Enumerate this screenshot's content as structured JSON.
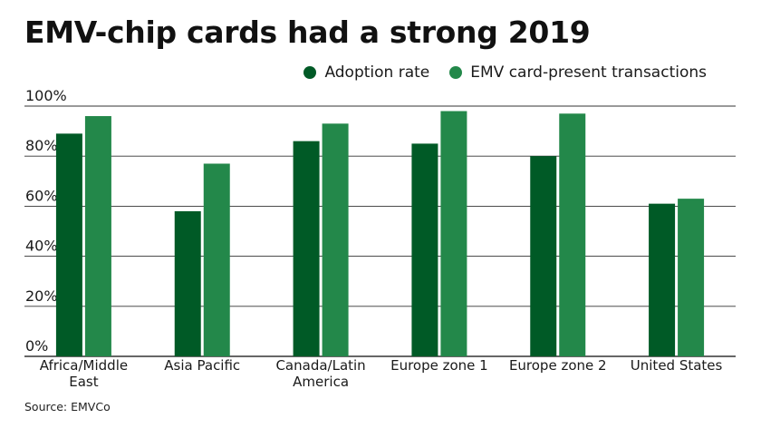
{
  "title": "EMV-chip cards had a strong 2019",
  "source": "Source: EMVCo",
  "colors": {
    "adoption": "#005a26",
    "transactions": "#23884a",
    "grid": "#333333"
  },
  "chart_data": {
    "type": "bar",
    "title": "EMV-chip cards had a strong 2019",
    "xlabel": "",
    "ylabel": "",
    "ylim": [
      0,
      100
    ],
    "yticks": [
      0,
      20,
      40,
      60,
      80,
      100
    ],
    "ytick_labels": [
      "0%",
      "20%",
      "40%",
      "60%",
      "80%",
      "100%"
    ],
    "categories": [
      [
        "Africa/Middle",
        "East"
      ],
      [
        "Asia Pacific"
      ],
      [
        "Canada/Latin",
        "America"
      ],
      [
        "Europe zone 1"
      ],
      [
        "Europe zone 2"
      ],
      [
        "United States"
      ]
    ],
    "legend_position": "top-right",
    "series": [
      {
        "name": "Adoption rate",
        "values": [
          89,
          58,
          86,
          85,
          80,
          61
        ]
      },
      {
        "name": "EMV card-present transactions",
        "values": [
          96,
          77,
          93,
          98,
          97,
          63
        ]
      }
    ]
  }
}
